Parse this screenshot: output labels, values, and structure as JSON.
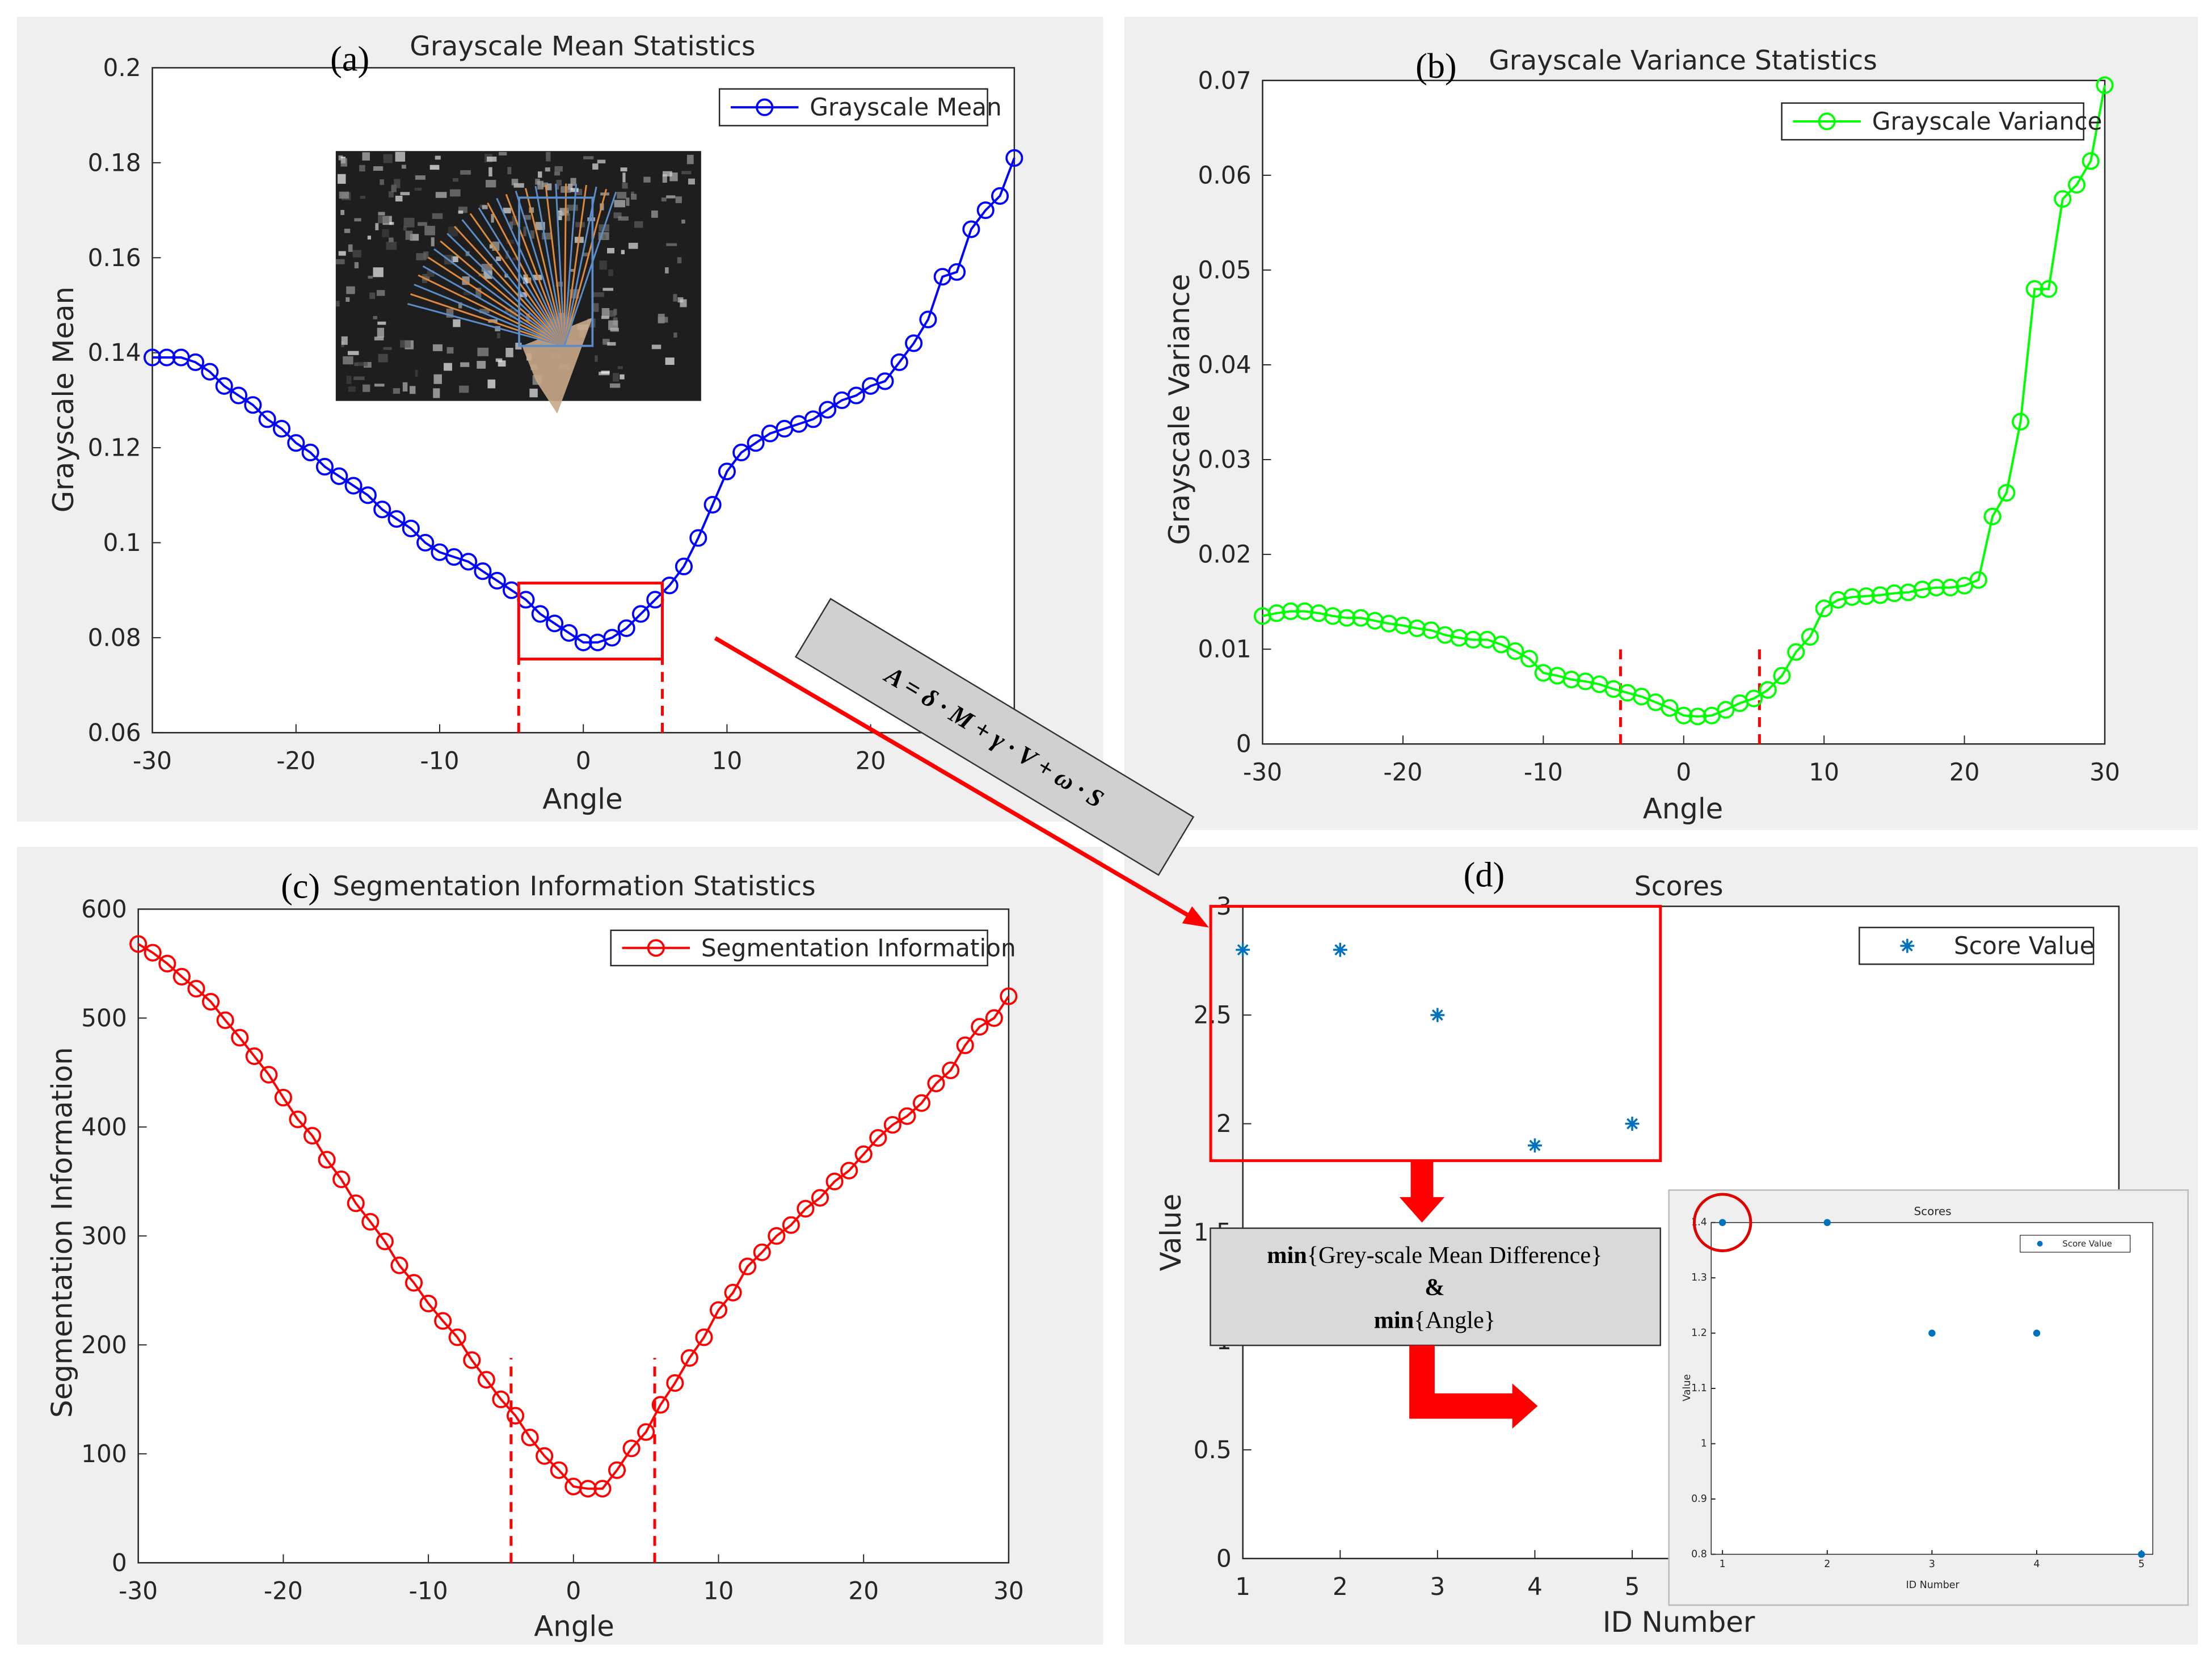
{
  "chart_data": [
    {
      "type": "line",
      "title": "Grayscale Mean Statistics",
      "panel_label": "(a)",
      "xlabel": "Angle",
      "ylabel": "Grayscale Mean",
      "x": [
        -30,
        -29,
        -28,
        -27,
        -26,
        -25,
        -24,
        -23,
        -22,
        -21,
        -20,
        -19,
        -18,
        -17,
        -16,
        -15,
        -14,
        -13,
        -12,
        -11,
        -10,
        -9,
        -8,
        -7,
        -6,
        -5,
        -4,
        -3,
        -2,
        -1,
        0,
        1,
        2,
        3,
        4,
        5,
        6,
        7,
        8,
        9,
        10,
        11,
        12,
        13,
        14,
        15,
        16,
        17,
        18,
        19,
        20,
        21,
        22,
        23,
        24,
        25,
        26,
        27,
        28,
        29,
        30
      ],
      "series": [
        {
          "name": "Grayscale Mean",
          "color": "#0000ff",
          "values": [
            0.139,
            0.139,
            0.139,
            0.138,
            0.136,
            0.133,
            0.131,
            0.129,
            0.126,
            0.124,
            0.121,
            0.119,
            0.116,
            0.114,
            0.112,
            0.11,
            0.107,
            0.105,
            0.103,
            0.1,
            0.098,
            0.097,
            0.096,
            0.094,
            0.092,
            0.09,
            0.088,
            0.085,
            0.083,
            0.081,
            0.079,
            0.079,
            0.08,
            0.082,
            0.085,
            0.088,
            0.091,
            0.095,
            0.101,
            0.108,
            0.115,
            0.119,
            0.121,
            0.123,
            0.124,
            0.125,
            0.126,
            0.128,
            0.13,
            0.131,
            0.133,
            0.134,
            0.138,
            0.142,
            0.147,
            0.156,
            0.157,
            0.166,
            0.17,
            0.173,
            0.181
          ]
        }
      ],
      "xlim": [
        -30,
        30
      ],
      "ylim": [
        0.06,
        0.2
      ],
      "xticks": [
        -30,
        -20,
        -10,
        0,
        10,
        20,
        30
      ],
      "yticks": [
        0.06,
        0.08,
        0.1,
        0.12,
        0.14,
        0.16,
        0.18,
        0.2
      ],
      "legend": "upper right",
      "reference_lines": {
        "x": [
          -4.5,
          5.5
        ],
        "y": [
          0.06,
          0.0755
        ]
      },
      "highlight_box": {
        "x": [
          -4.5,
          5.5
        ],
        "y": [
          0.0755,
          0.0915
        ]
      }
    },
    {
      "type": "line",
      "title": "Grayscale Variance Statistics",
      "panel_label": "(b)",
      "xlabel": "Angle",
      "ylabel": "Grayscale Variance",
      "x": [
        -30,
        -29,
        -28,
        -27,
        -26,
        -25,
        -24,
        -23,
        -22,
        -21,
        -20,
        -19,
        -18,
        -17,
        -16,
        -15,
        -14,
        -13,
        -12,
        -11,
        -10,
        -9,
        -8,
        -7,
        -6,
        -5,
        -4,
        -3,
        -2,
        -1,
        0,
        1,
        2,
        3,
        4,
        5,
        6,
        7,
        8,
        9,
        10,
        11,
        12,
        13,
        14,
        15,
        16,
        17,
        18,
        19,
        20,
        21,
        22,
        23,
        24,
        25,
        26,
        27,
        28,
        29,
        30
      ],
      "series": [
        {
          "name": "Grayscale Variance",
          "color": "#00ff00",
          "values": [
            0.0135,
            0.0138,
            0.014,
            0.014,
            0.0138,
            0.0135,
            0.0133,
            0.0133,
            0.013,
            0.0127,
            0.0125,
            0.0122,
            0.012,
            0.0115,
            0.0112,
            0.011,
            0.011,
            0.0105,
            0.0098,
            0.009,
            0.0075,
            0.0072,
            0.0068,
            0.0066,
            0.0063,
            0.0058,
            0.0054,
            0.005,
            0.0044,
            0.0038,
            0.003,
            0.0029,
            0.003,
            0.0036,
            0.0043,
            0.0048,
            0.0057,
            0.0072,
            0.0097,
            0.0113,
            0.0143,
            0.0152,
            0.0155,
            0.0156,
            0.0157,
            0.0159,
            0.016,
            0.0163,
            0.0165,
            0.0165,
            0.0167,
            0.0173,
            0.024,
            0.0265,
            0.034,
            0.048,
            0.048,
            0.0575,
            0.059,
            0.0615,
            0.0695
          ]
        }
      ],
      "xlim": [
        -30,
        30
      ],
      "ylim": [
        0,
        0.07
      ],
      "xticks": [
        -30,
        -20,
        -10,
        0,
        10,
        20,
        30
      ],
      "yticks": [
        0,
        0.01,
        0.02,
        0.03,
        0.04,
        0.05,
        0.06,
        0.07
      ],
      "legend": "upper right",
      "reference_lines": {
        "x": [
          -4.5,
          5.4
        ],
        "y": [
          0,
          0.0107
        ]
      }
    },
    {
      "type": "line",
      "title": "Segmentation Information Statistics",
      "panel_label": "(c)",
      "xlabel": "Angle",
      "ylabel": "Segmentation Information",
      "x": [
        -30,
        -29,
        -28,
        -27,
        -26,
        -25,
        -24,
        -23,
        -22,
        -21,
        -20,
        -19,
        -18,
        -17,
        -16,
        -15,
        -14,
        -13,
        -12,
        -11,
        -10,
        -9,
        -8,
        -7,
        -6,
        -5,
        -4,
        -3,
        -2,
        -1,
        0,
        1,
        2,
        3,
        4,
        5,
        6,
        7,
        8,
        9,
        10,
        11,
        12,
        13,
        14,
        15,
        16,
        17,
        18,
        19,
        20,
        21,
        22,
        23,
        24,
        25,
        26,
        27,
        28,
        29,
        30
      ],
      "series": [
        {
          "name": "Segmentation Information",
          "color": "#ff0000",
          "values": [
            568,
            560,
            550,
            538,
            527,
            515,
            498,
            482,
            465,
            448,
            427,
            407,
            392,
            370,
            352,
            330,
            313,
            295,
            273,
            257,
            238,
            222,
            207,
            186,
            168,
            150,
            135,
            115,
            98,
            85,
            70,
            68,
            68,
            85,
            105,
            120,
            145,
            165,
            188,
            207,
            232,
            248,
            272,
            285,
            300,
            310,
            325,
            335,
            350,
            360,
            375,
            390,
            402,
            410,
            422,
            440,
            452,
            475,
            492,
            500,
            520
          ]
        }
      ],
      "xlim": [
        -30,
        30
      ],
      "ylim": [
        0,
        600
      ],
      "xticks": [
        -30,
        -20,
        -10,
        0,
        10,
        20,
        30
      ],
      "yticks": [
        0,
        100,
        200,
        300,
        400,
        500,
        600
      ],
      "legend": "upper right",
      "reference_lines": {
        "x": [
          -4.3,
          5.6
        ],
        "y": [
          0,
          188
        ]
      }
    },
    {
      "type": "scatter",
      "title": "Scores",
      "panel_label": "(d)",
      "xlabel": "ID Number",
      "ylabel": "Value",
      "marker": "asterisk",
      "x": [
        1,
        2,
        3,
        4,
        5
      ],
      "series": [
        {
          "name": "Score Value",
          "color": "#0072bd",
          "values": [
            2.8,
            2.8,
            2.5,
            1.9,
            2.0
          ]
        }
      ],
      "xlim": [
        1,
        10
      ],
      "ylim": [
        0,
        3
      ],
      "xticks": [
        1,
        2,
        3,
        4,
        5
      ],
      "yticks": [
        0,
        0.5,
        1,
        1.5,
        2,
        2.5,
        3
      ],
      "legend": "upper right",
      "highlight_box": {
        "x": [
          0.67,
          5.29
        ],
        "y": [
          1.83,
          3.0
        ]
      }
    },
    {
      "type": "scatter",
      "title": "Scores",
      "xlabel": "ID Number",
      "ylabel": "Value",
      "marker": "dot",
      "x": [
        1,
        2,
        3,
        4,
        5
      ],
      "series": [
        {
          "name": "Score Value",
          "color": "#0072bd",
          "values": [
            1.4,
            1.4,
            1.2,
            1.2,
            0.8
          ]
        }
      ],
      "xlim": [
        1,
        5
      ],
      "ylim": [
        0.8,
        1.4
      ],
      "xticks": [
        1,
        2,
        3,
        4,
        5
      ],
      "yticks": [
        0.8,
        0.9,
        1,
        1.1,
        1.2,
        1.3,
        1.4
      ],
      "legend": "upper right",
      "highlight_circle": {
        "x": 1,
        "y": 1.4
      }
    }
  ],
  "annotations": {
    "formula": "A = δ · M + γ · V + ω · S",
    "decision": {
      "line1": {
        "keyword": "min",
        "text": "{Grey-scale Mean Difference}"
      },
      "joiner": "&",
      "line2": {
        "keyword": "min",
        "text": "{Angle}"
      }
    }
  }
}
